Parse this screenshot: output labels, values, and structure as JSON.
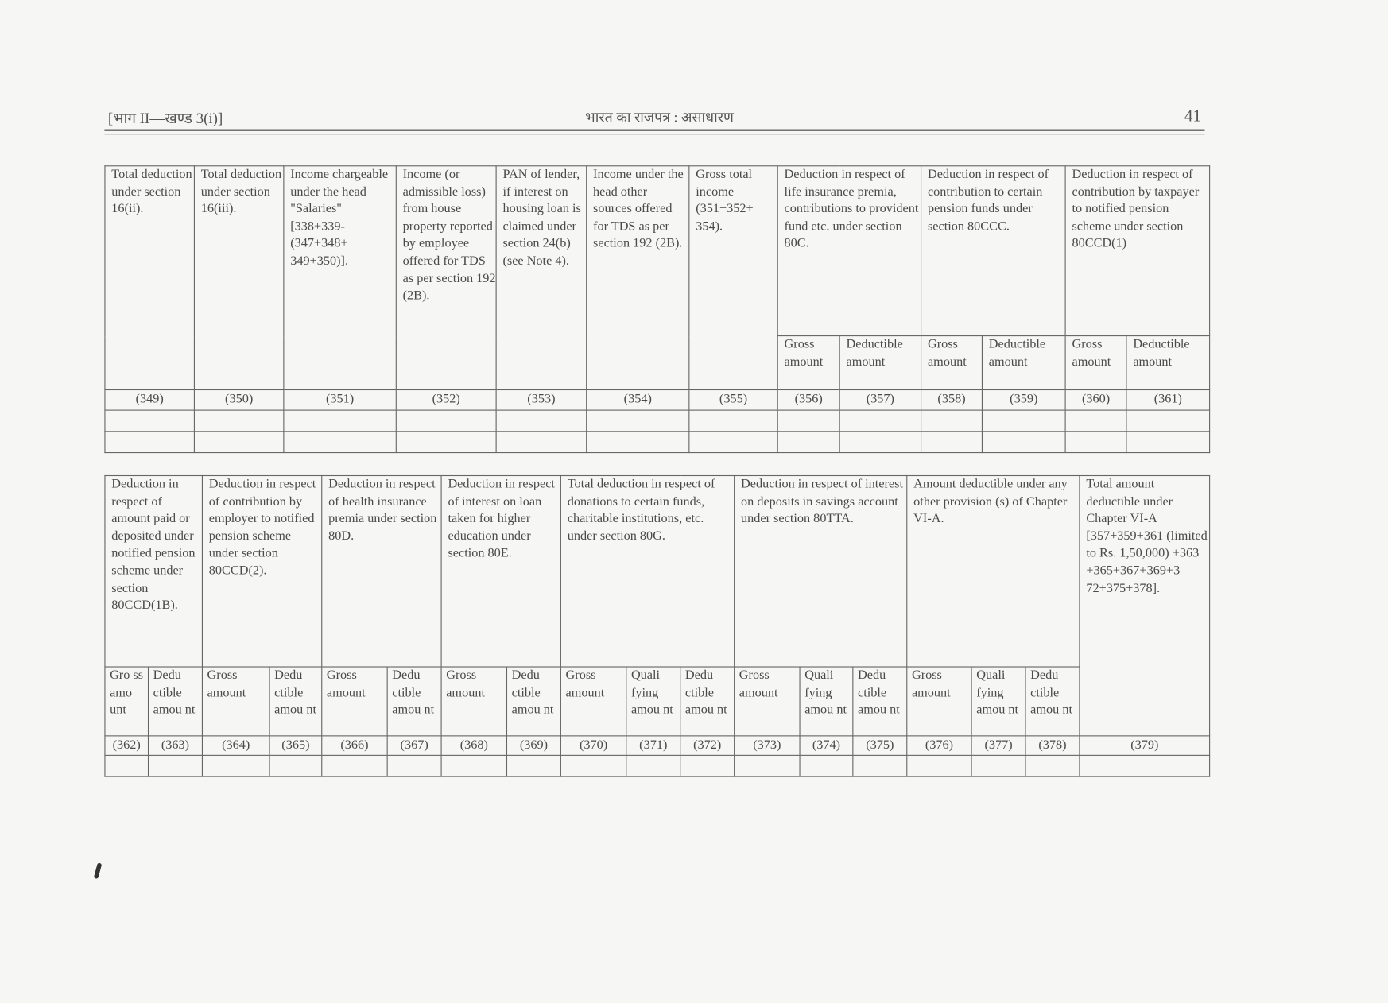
{
  "header": {
    "left": "[भाग II—खण्ड 3(i)]",
    "center": "भारत का राजपत्र : असाधारण",
    "page_number": "41"
  },
  "table1": {
    "columns": [
      {
        "title": "Total deduction under section 16(ii).",
        "numbers": [
          "(349)"
        ]
      },
      {
        "title": "Total deduction under section 16(iii).",
        "numbers": [
          "(350)"
        ]
      },
      {
        "title": "Income chargeable under the head \"Salaries\" [338+339-(347+348+ 349+350)].",
        "numbers": [
          "(351)"
        ]
      },
      {
        "title": "Income (or admissible loss) from house property reported by employee offered for TDS as per section 192 (2B).",
        "numbers": [
          "(352)"
        ]
      },
      {
        "title": "PAN of lender, if interest on housing loan is claimed under section 24(b) (see Note 4).",
        "numbers": [
          "(353)"
        ]
      },
      {
        "title": "Income under the head other sources offered for TDS as per section 192 (2B).",
        "numbers": [
          "(354)"
        ]
      },
      {
        "title": "Gross total income (351+352+ 354).",
        "numbers": [
          "(355)"
        ]
      },
      {
        "title": "Deduction in respect of life insurance premia, contributions to provident fund etc. under section 80C.",
        "subs": [
          "Gross amount",
          "Deductible amount"
        ],
        "numbers": [
          "(356)",
          "(357)"
        ]
      },
      {
        "title": "Deduction in respect of contribution to certain pension funds under section 80CCC.",
        "subs": [
          "Gross amount",
          "Deductible amount"
        ],
        "numbers": [
          "(358)",
          "(359)"
        ]
      },
      {
        "title": "Deduction in respect of contribution by taxpayer to notified pension scheme under section 80CCD(1)",
        "subs": [
          "Gross amount",
          "Deductible amount"
        ],
        "numbers": [
          "(360)",
          "(361)"
        ]
      }
    ],
    "blank_rows": 2
  },
  "table2": {
    "columns": [
      {
        "title": "Deduction in respect of amount paid or deposited under notified pension scheme under section 80CCD(1B).",
        "subs": [
          "Gro ss amo unt",
          "Dedu ctible amou nt"
        ],
        "numbers": [
          "(362)",
          "(363)"
        ]
      },
      {
        "title": "Deduction in respect of contribution by employer to notified pension scheme under section 80CCD(2).",
        "subs": [
          "Gross amount",
          "Dedu ctible amou nt"
        ],
        "numbers": [
          "(364)",
          "(365)"
        ]
      },
      {
        "title": "Deduction in respect of health insurance premia under section 80D.",
        "subs": [
          "Gross amount",
          "Dedu ctible amou nt"
        ],
        "numbers": [
          "(366)",
          "(367)"
        ]
      },
      {
        "title": "Deduction in respect of interest on loan taken for higher education under section 80E.",
        "subs": [
          "Gross amount",
          "Dedu ctible amou nt"
        ],
        "numbers": [
          "(368)",
          "(369)"
        ]
      },
      {
        "title": "Total deduction in respect of donations to certain funds, charitable institutions, etc. under section 80G.",
        "subs": [
          "Gross amount",
          "Quali fying amou nt",
          "Dedu ctible amou nt"
        ],
        "numbers": [
          "(370)",
          "(371)",
          "(372)"
        ]
      },
      {
        "title": "Deduction in respect of interest on deposits in savings account under section 80TTA.",
        "subs": [
          "Gross amount",
          "Quali fying amou nt",
          "Dedu ctible amou nt"
        ],
        "numbers": [
          "(373)",
          "(374)",
          "(375)"
        ]
      },
      {
        "title": "Amount deductible under any other provision (s) of Chapter VI-A.",
        "subs": [
          "Gross amount",
          "Quali fying amou nt",
          "Dedu ctible amou nt"
        ],
        "numbers": [
          "(376)",
          "(377)",
          "(378)"
        ]
      },
      {
        "title": "Total amount deductible under Chapter VI-A [357+359+361 (limited to Rs. 1,50,000) +363 +365+367+369+3 72+375+378].",
        "numbers": [
          "(379)"
        ]
      }
    ],
    "blank_rows": 1
  }
}
